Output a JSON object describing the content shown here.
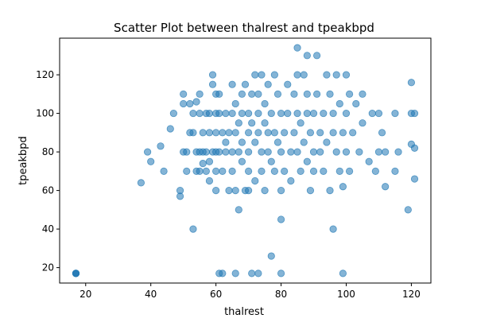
{
  "colors": {
    "point": "#1f77b4",
    "axis": "#000000",
    "background": "#ffffff"
  },
  "chart_data": {
    "type": "scatter",
    "title": "Scatter Plot between thalrest and tpeakbpd",
    "xlabel": "thalrest",
    "ylabel": "tpeakbpd",
    "xlim": [
      12,
      126
    ],
    "ylim": [
      12,
      139
    ],
    "xticks": [
      20,
      40,
      60,
      80,
      100,
      120
    ],
    "yticks": [
      20,
      40,
      60,
      80,
      100,
      120
    ],
    "grid": false,
    "point_alpha": 0.55,
    "series": [
      {
        "points": [
          [
            17,
            17
          ],
          [
            17,
            17
          ],
          [
            17,
            17
          ],
          [
            17,
            17
          ],
          [
            37,
            64
          ],
          [
            39,
            80
          ],
          [
            40,
            75
          ],
          [
            43,
            83
          ],
          [
            44,
            70
          ],
          [
            46,
            92
          ],
          [
            47,
            100
          ],
          [
            49,
            60
          ],
          [
            49,
            57
          ],
          [
            50,
            80
          ],
          [
            50,
            110
          ],
          [
            50,
            105
          ],
          [
            51,
            80
          ],
          [
            51,
            70
          ],
          [
            52,
            90
          ],
          [
            52,
            105
          ],
          [
            53,
            40
          ],
          [
            53,
            100
          ],
          [
            53,
            90
          ],
          [
            54,
            80
          ],
          [
            54,
            70
          ],
          [
            54,
            106
          ],
          [
            55,
            80
          ],
          [
            55,
            70
          ],
          [
            55,
            100
          ],
          [
            55,
            110
          ],
          [
            56,
            90
          ],
          [
            56,
            80
          ],
          [
            56,
            74
          ],
          [
            57,
            100
          ],
          [
            57,
            70
          ],
          [
            57,
            80
          ],
          [
            58,
            100
          ],
          [
            58,
            90
          ],
          [
            58,
            75
          ],
          [
            58,
            65
          ],
          [
            59,
            120
          ],
          [
            59,
            115
          ],
          [
            59,
            80
          ],
          [
            60,
            110
          ],
          [
            60,
            100
          ],
          [
            60,
            90
          ],
          [
            60,
            80
          ],
          [
            60,
            70
          ],
          [
            60,
            60
          ],
          [
            61,
            100
          ],
          [
            61,
            80
          ],
          [
            61,
            110
          ],
          [
            61,
            17
          ],
          [
            62,
            17
          ],
          [
            62,
            90
          ],
          [
            62,
            70
          ],
          [
            63,
            80
          ],
          [
            63,
            100
          ],
          [
            63,
            85
          ],
          [
            64,
            90
          ],
          [
            64,
            60
          ],
          [
            65,
            115
          ],
          [
            65,
            100
          ],
          [
            65,
            80
          ],
          [
            65,
            70
          ],
          [
            66,
            17
          ],
          [
            66,
            105
          ],
          [
            66,
            90
          ],
          [
            66,
            60
          ],
          [
            67,
            80
          ],
          [
            67,
            50
          ],
          [
            67,
            95
          ],
          [
            68,
            110
          ],
          [
            68,
            100
          ],
          [
            68,
            85
          ],
          [
            68,
            75
          ],
          [
            69,
            60
          ],
          [
            69,
            115
          ],
          [
            70,
            100
          ],
          [
            70,
            90
          ],
          [
            70,
            80
          ],
          [
            70,
            70
          ],
          [
            70,
            60
          ],
          [
            71,
            17
          ],
          [
            71,
            110
          ],
          [
            71,
            95
          ],
          [
            72,
            120
          ],
          [
            72,
            85
          ],
          [
            72,
            65
          ],
          [
            73,
            17
          ],
          [
            73,
            110
          ],
          [
            73,
            100
          ],
          [
            73,
            90
          ],
          [
            74,
            80
          ],
          [
            74,
            70
          ],
          [
            74,
            120
          ],
          [
            75,
            105
          ],
          [
            75,
            95
          ],
          [
            75,
            60
          ],
          [
            76,
            115
          ],
          [
            76,
            90
          ],
          [
            76,
            80
          ],
          [
            77,
            100
          ],
          [
            77,
            75
          ],
          [
            77,
            26
          ],
          [
            78,
            120
          ],
          [
            78,
            90
          ],
          [
            78,
            70
          ],
          [
            79,
            110
          ],
          [
            79,
            85
          ],
          [
            80,
            100
          ],
          [
            80,
            80
          ],
          [
            80,
            45
          ],
          [
            80,
            17
          ],
          [
            80,
            60
          ],
          [
            81,
            90
          ],
          [
            81,
            70
          ],
          [
            82,
            115
          ],
          [
            82,
            100
          ],
          [
            83,
            80
          ],
          [
            83,
            65
          ],
          [
            84,
            110
          ],
          [
            84,
            90
          ],
          [
            85,
            120
          ],
          [
            85,
            100
          ],
          [
            85,
            80
          ],
          [
            85,
            134
          ],
          [
            86,
            70
          ],
          [
            86,
            95
          ],
          [
            87,
            120
          ],
          [
            87,
            85
          ],
          [
            88,
            130
          ],
          [
            88,
            110
          ],
          [
            88,
            100
          ],
          [
            88,
            75
          ],
          [
            89,
            90
          ],
          [
            89,
            60
          ],
          [
            90,
            80
          ],
          [
            90,
            100
          ],
          [
            90,
            70
          ],
          [
            91,
            130
          ],
          [
            91,
            110
          ],
          [
            92,
            90
          ],
          [
            92,
            80
          ],
          [
            93,
            100
          ],
          [
            93,
            70
          ],
          [
            94,
            120
          ],
          [
            94,
            85
          ],
          [
            95,
            110
          ],
          [
            95,
            60
          ],
          [
            96,
            40
          ],
          [
            96,
            100
          ],
          [
            96,
            90
          ],
          [
            97,
            120
          ],
          [
            97,
            80
          ],
          [
            98,
            105
          ],
          [
            98,
            70
          ],
          [
            99,
            90
          ],
          [
            99,
            17
          ],
          [
            99,
            62
          ],
          [
            100,
            120
          ],
          [
            100,
            80
          ],
          [
            100,
            100
          ],
          [
            101,
            110
          ],
          [
            101,
            70
          ],
          [
            102,
            90
          ],
          [
            103,
            105
          ],
          [
            104,
            80
          ],
          [
            105,
            110
          ],
          [
            105,
            95
          ],
          [
            107,
            75
          ],
          [
            108,
            100
          ],
          [
            109,
            70
          ],
          [
            110,
            100
          ],
          [
            110,
            80
          ],
          [
            111,
            90
          ],
          [
            112,
            62
          ],
          [
            112,
            80
          ],
          [
            115,
            100
          ],
          [
            115,
            70
          ],
          [
            116,
            80
          ],
          [
            119,
            50
          ],
          [
            120,
            116
          ],
          [
            120,
            100
          ],
          [
            120,
            84
          ],
          [
            121,
            82
          ],
          [
            121,
            66
          ],
          [
            121,
            100
          ]
        ]
      }
    ]
  }
}
